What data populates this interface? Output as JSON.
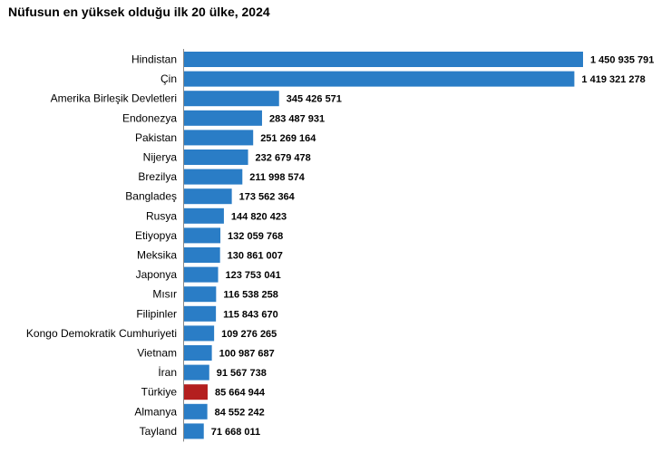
{
  "chart_data": {
    "type": "bar",
    "orientation": "horizontal",
    "title": "Nüfusun en yüksek olduğu ilk 20 ülke, 2024",
    "categories": [
      "Hindistan",
      "Çin",
      "Amerika Birleşik Devletleri",
      "Endonezya",
      "Pakistan",
      "Nijerya",
      "Brezilya",
      "Bangladeş",
      "Rusya",
      "Etiyopya",
      "Meksika",
      "Japonya",
      "Mısır",
      "Filipinler",
      "Kongo Demokratik Cumhuriyeti",
      "Vietnam",
      "İran",
      "Türkiye",
      "Almanya",
      "Tayland"
    ],
    "values": [
      1450935791,
      1419321278,
      345426571,
      283487931,
      251269164,
      232679478,
      211998574,
      173562364,
      144820423,
      132059768,
      130861007,
      123753041,
      116538258,
      115843670,
      109276265,
      100987687,
      91567738,
      85664944,
      84552242,
      71668011
    ],
    "value_labels": [
      "1 450 935 791",
      "1 419 321 278",
      "345 426 571",
      "283 487 931",
      "251 269 164",
      "232 679 478",
      "211 998 574",
      "173 562 364",
      "144 820 423",
      "132 059 768",
      "130 861 007",
      "123 753 041",
      "116 538 258",
      "115 843 670",
      "109 276 265",
      "100 987 687",
      "91 567 738",
      "85 664 944",
      "84 552 242",
      "71 668 011"
    ],
    "xlabel": "",
    "ylabel": "",
    "grid": false,
    "legend": false,
    "colors": {
      "default": "#2a7dc6",
      "highlight": "#b41f1f"
    },
    "highlight_category": "Türkiye"
  }
}
